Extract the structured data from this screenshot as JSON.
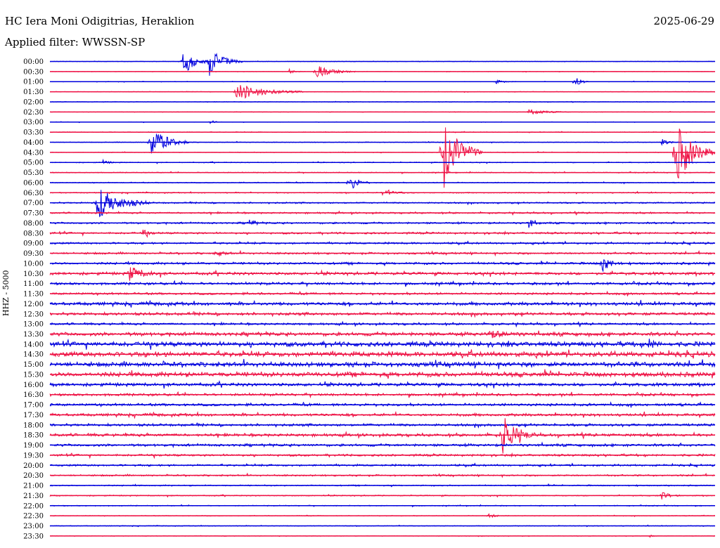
{
  "header": {
    "station": "HC Iera Moni Odigitrias, Heraklion",
    "date": "2025-06-29",
    "filter": "Applied filter: WWSSN-SP"
  },
  "chart_data": {
    "type": "line",
    "title": "HC Iera Moni Odigitrias, Heraklion",
    "ylabel": "HHZ - 5000",
    "row_labels": [
      "00:00",
      "00:30",
      "01:00",
      "01:30",
      "02:00",
      "02:30",
      "03:00",
      "03:30",
      "04:00",
      "04:30",
      "05:00",
      "05:30",
      "06:00",
      "06:30",
      "07:00",
      "07:30",
      "08:00",
      "08:30",
      "09:00",
      "09:30",
      "10:00",
      "10:30",
      "11:00",
      "11:30",
      "12:00",
      "12:30",
      "13:00",
      "13:30",
      "14:00",
      "14:30",
      "15:00",
      "15:30",
      "16:00",
      "16:30",
      "17:00",
      "17:30",
      "18:00",
      "18:30",
      "19:00",
      "19:30",
      "20:00",
      "20:30",
      "21:00",
      "21:30",
      "22:00",
      "22:30",
      "23:00",
      "23:30"
    ],
    "colors": {
      "even_rows": "#0000dd",
      "odd_rows": "#ee1144"
    },
    "noise_amplitude_per_row": [
      0.3,
      0.3,
      0.3,
      0.3,
      0.3,
      0.3,
      0.3,
      0.4,
      0.4,
      0.4,
      0.5,
      0.5,
      0.5,
      0.6,
      0.8,
      0.9,
      1.0,
      1.1,
      1.1,
      1.1,
      1.3,
      1.6,
      1.4,
      1.2,
      1.8,
      1.6,
      1.2,
      2.0,
      2.6,
      2.8,
      2.6,
      2.6,
      1.8,
      1.4,
      1.4,
      1.5,
      1.4,
      1.6,
      1.4,
      1.2,
      1.1,
      0.9,
      0.7,
      0.6,
      0.5,
      0.4,
      0.4,
      0.3
    ],
    "events": [
      {
        "row": 0,
        "x": 0.2,
        "amp": 22,
        "dur": 0.04
      },
      {
        "row": 0,
        "x": 0.24,
        "amp": 20,
        "dur": 0.05
      },
      {
        "row": 1,
        "x": 0.36,
        "amp": 3,
        "dur": 0.02
      },
      {
        "row": 1,
        "x": 0.4,
        "amp": 9,
        "dur": 0.06
      },
      {
        "row": 2,
        "x": 0.67,
        "amp": 3,
        "dur": 0.03
      },
      {
        "row": 2,
        "x": 0.79,
        "amp": 9,
        "dur": 0.02
      },
      {
        "row": 3,
        "x": 0.28,
        "amp": 13,
        "dur": 0.1
      },
      {
        "row": 5,
        "x": 0.72,
        "amp": 4,
        "dur": 0.06
      },
      {
        "row": 6,
        "x": 0.24,
        "amp": 3,
        "dur": 0.02
      },
      {
        "row": 8,
        "x": 0.15,
        "amp": 25,
        "dur": 0.06
      },
      {
        "row": 8,
        "x": 0.92,
        "amp": 6,
        "dur": 0.02
      },
      {
        "row": 9,
        "x": 0.59,
        "amp": 58,
        "dur": 0.06
      },
      {
        "row": 9,
        "x": 0.94,
        "amp": 50,
        "dur": 0.06
      },
      {
        "row": 10,
        "x": 0.08,
        "amp": 3,
        "dur": 0.02
      },
      {
        "row": 12,
        "x": 0.45,
        "amp": 14,
        "dur": 0.03
      },
      {
        "row": 13,
        "x": 0.5,
        "amp": 4,
        "dur": 0.05
      },
      {
        "row": 14,
        "x": 0.07,
        "amp": 24,
        "dur": 0.08
      },
      {
        "row": 16,
        "x": 0.3,
        "amp": 5,
        "dur": 0.02
      },
      {
        "row": 16,
        "x": 0.72,
        "amp": 7,
        "dur": 0.02
      },
      {
        "row": 17,
        "x": 0.14,
        "amp": 5,
        "dur": 0.02
      },
      {
        "row": 19,
        "x": 0.25,
        "amp": 4,
        "dur": 0.03
      },
      {
        "row": 20,
        "x": 0.83,
        "amp": 12,
        "dur": 0.03
      },
      {
        "row": 21,
        "x": 0.12,
        "amp": 10,
        "dur": 0.05
      },
      {
        "row": 27,
        "x": 0.66,
        "amp": 5,
        "dur": 0.05
      },
      {
        "row": 28,
        "x": 0.9,
        "amp": 7,
        "dur": 0.02
      },
      {
        "row": 37,
        "x": 0.68,
        "amp": 30,
        "dur": 0.05
      },
      {
        "row": 43,
        "x": 0.92,
        "amp": 5,
        "dur": 0.03
      },
      {
        "row": 45,
        "x": 0.66,
        "amp": 4,
        "dur": 0.02
      },
      {
        "row": 47,
        "x": 0.9,
        "amp": 3,
        "dur": 0.01
      }
    ]
  }
}
